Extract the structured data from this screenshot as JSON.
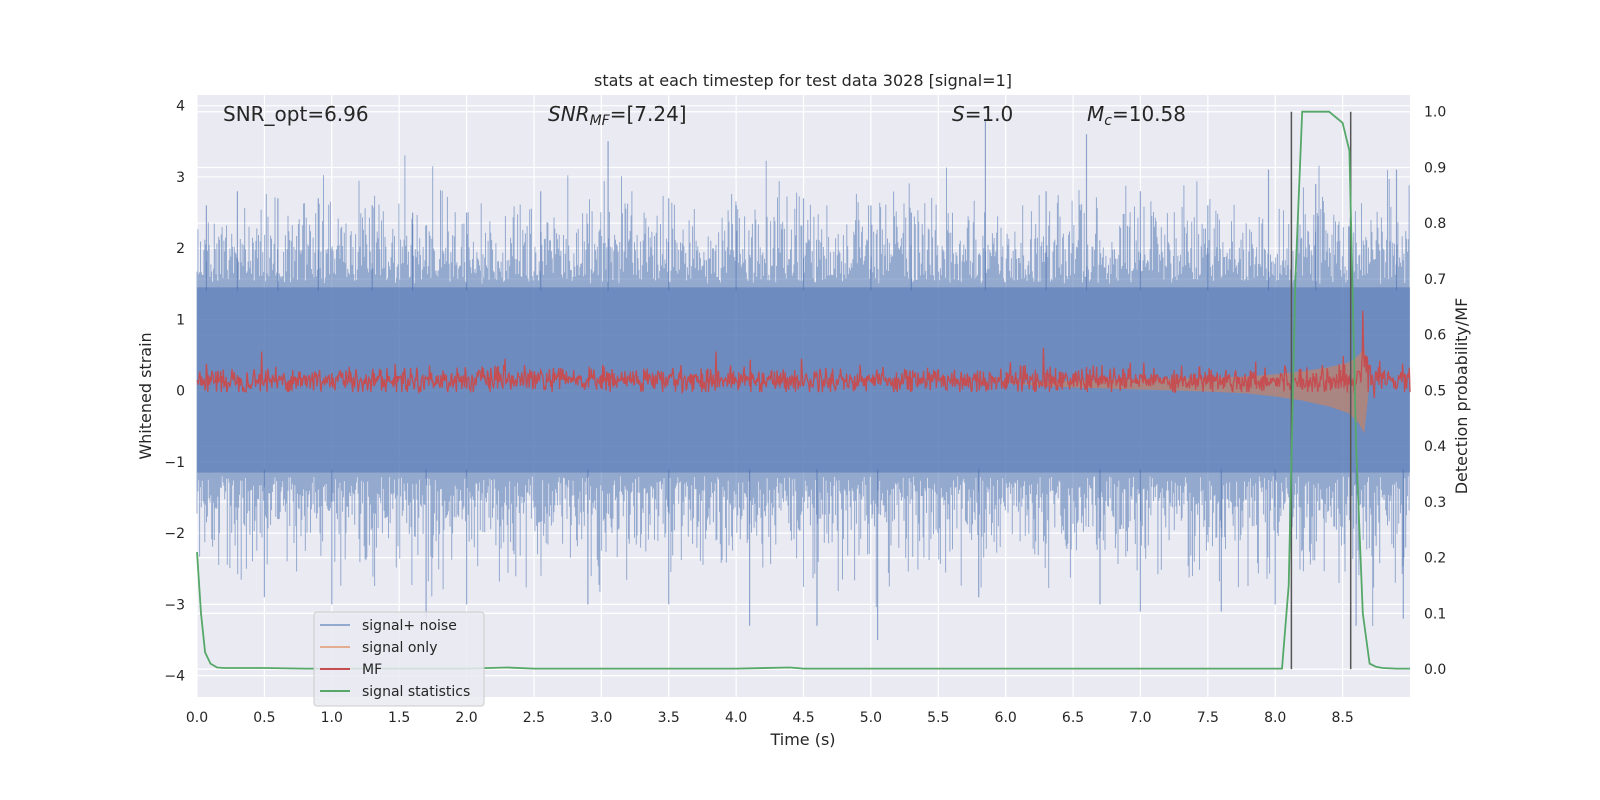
{
  "chart_data": {
    "type": "line",
    "title": "stats at each timestep for test data 3028 [signal=1]",
    "xlabel": "Time (s)",
    "ylabel": "Whitened strain",
    "ylabel_right": "Detection probability/MF",
    "xlim": [
      0.0,
      9.0
    ],
    "ylim": [
      -4.3,
      4.15
    ],
    "ylim_right": [
      -0.05,
      1.03
    ],
    "x_ticks": [
      "0.0",
      "0.5",
      "1.0",
      "1.5",
      "2.0",
      "2.5",
      "3.0",
      "3.5",
      "4.0",
      "4.5",
      "5.0",
      "5.5",
      "6.0",
      "6.5",
      "7.0",
      "7.5",
      "8.0",
      "8.5"
    ],
    "y_ticks": [
      "−4",
      "−3",
      "−2",
      "−1",
      "0",
      "1",
      "2",
      "3",
      "4"
    ],
    "y_ticks_right": [
      "0.0",
      "0.1",
      "0.2",
      "0.3",
      "0.4",
      "0.5",
      "0.6",
      "0.7",
      "0.8",
      "0.9",
      "1.0"
    ],
    "grid": true,
    "legend_position": "lower-left",
    "annotations": {
      "snr_opt": "SNR_opt=6.96",
      "snr_mf_prefix": "SNR",
      "snr_mf_sub": "MF",
      "snr_mf_value": "=[7.24]",
      "s_label": "S",
      "s_value": "=1.0",
      "mc_label": "M",
      "mc_sub": "c",
      "mc_value": "=10.58"
    },
    "vertical_lines_x": [
      8.12,
      8.56
    ],
    "series": [
      {
        "name": "signal+ noise",
        "color": "#4c72b0",
        "description_range": [
          -3.6,
          3.5
        ],
        "envelope_peaks": [
          [
            0.07,
            2.6
          ],
          [
            0.3,
            2.8
          ],
          [
            0.6,
            2.7
          ],
          [
            0.9,
            2.7
          ],
          [
            1.3,
            2.6
          ],
          [
            1.6,
            2.5
          ],
          [
            2.0,
            2.5
          ],
          [
            2.55,
            2.8
          ],
          [
            3.05,
            3.5
          ],
          [
            3.5,
            2.7
          ],
          [
            4.0,
            2.6
          ],
          [
            4.5,
            2.7
          ],
          [
            5.0,
            2.6
          ],
          [
            5.3,
            2.5
          ],
          [
            5.85,
            3.8
          ],
          [
            6.3,
            2.8
          ],
          [
            6.6,
            3.6
          ],
          [
            7.0,
            2.8
          ],
          [
            7.5,
            2.6
          ],
          [
            7.95,
            3.1
          ],
          [
            8.3,
            2.9
          ],
          [
            8.9,
            3.1
          ]
        ],
        "envelope_troughs": [
          [
            0.5,
            -2.9
          ],
          [
            1.0,
            -3.0
          ],
          [
            1.7,
            -3.2
          ],
          [
            2.0,
            -3.0
          ],
          [
            2.9,
            -3.0
          ],
          [
            3.5,
            -3.0
          ],
          [
            4.1,
            -3.3
          ],
          [
            4.6,
            -3.3
          ],
          [
            5.05,
            -3.5
          ],
          [
            5.8,
            -2.9
          ],
          [
            6.7,
            -3.0
          ],
          [
            7.0,
            -3.1
          ],
          [
            7.6,
            -3.1
          ],
          [
            8.0,
            -3.0
          ],
          [
            8.6,
            -3.3
          ],
          [
            8.95,
            -3.2
          ]
        ]
      },
      {
        "name": "signal only",
        "color": "#dd8452",
        "x": [
          6.0,
          6.5,
          7.0,
          7.5,
          7.8,
          8.0,
          8.2,
          8.4,
          8.55,
          8.62,
          8.66,
          8.7
        ],
        "amplitude": [
          0.0,
          0.04,
          0.06,
          0.08,
          0.1,
          0.13,
          0.17,
          0.23,
          0.3,
          0.4,
          0.5,
          0.0
        ]
      },
      {
        "name": "MF",
        "color": "#c44e52",
        "baseline": 0.15,
        "band": [
          0.0,
          0.4
        ],
        "peaks": [
          [
            0.48,
            0.55
          ],
          [
            3.85,
            0.55
          ],
          [
            6.28,
            0.6
          ],
          [
            8.65,
            1.0
          ]
        ]
      },
      {
        "name": "signal statistics",
        "color": "#55a868",
        "axis": "right",
        "x": [
          0.0,
          0.03,
          0.06,
          0.1,
          0.15,
          0.2,
          0.3,
          0.5,
          0.8,
          1.5,
          2.0,
          2.3,
          2.5,
          3.0,
          4.0,
          4.4,
          4.5,
          5.0,
          6.0,
          7.0,
          7.5,
          8.0,
          8.05,
          8.1,
          8.15,
          8.2,
          8.3,
          8.4,
          8.5,
          8.55,
          8.6,
          8.65,
          8.7,
          8.75,
          8.8,
          8.9,
          9.0
        ],
        "y": [
          0.21,
          0.1,
          0.03,
          0.01,
          0.003,
          0.002,
          0.002,
          0.002,
          0.001,
          0.001,
          0.001,
          0.003,
          0.001,
          0.001,
          0.001,
          0.003,
          0.001,
          0.001,
          0.001,
          0.001,
          0.001,
          0.001,
          0.001,
          0.15,
          0.7,
          1.0,
          1.0,
          1.0,
          0.98,
          0.93,
          0.4,
          0.1,
          0.01,
          0.004,
          0.002,
          0.001,
          0.001
        ]
      }
    ]
  }
}
